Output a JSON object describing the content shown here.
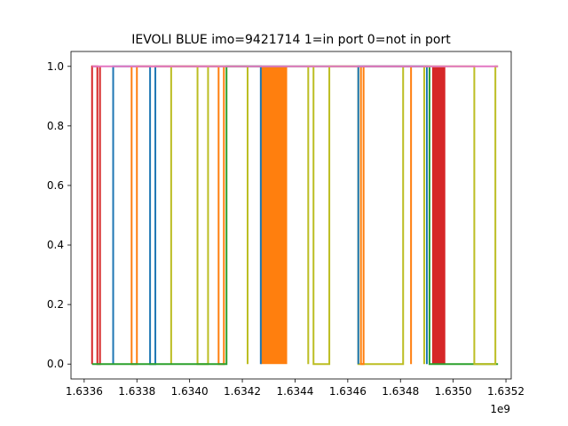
{
  "chart_data": {
    "type": "line",
    "title": "IEVOLI BLUE imo=9421714 1=in port 0=not in port",
    "xlabel": "",
    "ylabel": "",
    "x_offset_label": "1e9",
    "xlim": [
      1.63355,
      1.63522
    ],
    "ylim": [
      -0.05,
      1.05
    ],
    "x_ticks": [
      1.6336,
      1.6338,
      1.634,
      1.6342,
      1.6344,
      1.6346,
      1.6348,
      1.635,
      1.6352
    ],
    "x_tick_labels": [
      "1.6336",
      "1.6338",
      "1.6340",
      "1.6342",
      "1.6344",
      "1.6346",
      "1.6348",
      "1.6350",
      "1.6352"
    ],
    "y_ticks": [
      0.0,
      0.2,
      0.4,
      0.6,
      0.8,
      1.0
    ],
    "y_tick_labels": [
      "0.0",
      "0.2",
      "0.4",
      "0.6",
      "0.8",
      "1.0"
    ],
    "grid": false,
    "legend": "none",
    "series": [
      {
        "color": "#d62728",
        "x": [
          1.63363,
          1.63363,
          1.63365,
          1.63365,
          1.63366,
          1.63366
        ],
        "y": [
          0,
          1,
          1,
          0,
          0,
          1
        ]
      },
      {
        "color": "#1f77b4",
        "x": [
          1.63371,
          1.63371,
          1.63385,
          1.63385,
          1.63387,
          1.63387,
          1.63427,
          1.63427
        ],
        "y": [
          0,
          1,
          1,
          0,
          0,
          1,
          1,
          0
        ]
      },
      {
        "color": "#ff7f0e",
        "x": [
          1.63378,
          1.63378,
          1.6338,
          1.6338,
          1.63411,
          1.63411,
          1.63413,
          1.63413
        ],
        "y": [
          1,
          0,
          0,
          1,
          1,
          0,
          0,
          1
        ]
      },
      {
        "color": "#bcbd22",
        "x": [
          1.63393,
          1.63393,
          1.63403,
          1.63403,
          1.63407,
          1.63407,
          1.63422,
          1.63422
        ],
        "y": [
          0,
          1,
          1,
          0,
          0,
          1,
          1,
          0
        ]
      },
      {
        "color": "#2ca02c",
        "x": [
          1.63363,
          1.63414,
          1.63414,
          1.63491,
          1.63491,
          1.63517
        ],
        "y": [
          0,
          0,
          1,
          1,
          0,
          0
        ]
      },
      {
        "color": "#bcbd22",
        "x": [
          1.63445,
          1.63445,
          1.63447,
          1.63447,
          1.63453,
          1.63453,
          1.63464,
          1.63464,
          1.63481,
          1.63481
        ],
        "y": [
          0,
          1,
          1,
          0,
          0,
          1,
          1,
          0,
          0,
          1
        ]
      },
      {
        "color": "#ff7f0e",
        "x": [
          1.63465,
          1.63465,
          1.63466,
          1.63466,
          1.63484,
          1.63484
        ],
        "y": [
          1,
          0,
          0,
          1,
          1,
          0
        ]
      },
      {
        "color": "#1f77b4",
        "x": [
          1.63464,
          1.63464,
          1.6349,
          1.6349
        ],
        "y": [
          0,
          1,
          1,
          0
        ]
      },
      {
        "color": "#bcbd22",
        "x": [
          1.63489,
          1.63489,
          1.63508,
          1.63508,
          1.63516,
          1.63516,
          1.63517
        ],
        "y": [
          0,
          1,
          1,
          0,
          0,
          1,
          1
        ]
      },
      {
        "color": "#e377c2",
        "x": [
          1.63363,
          1.63517
        ],
        "y": [
          1,
          1
        ]
      }
    ],
    "filled_bands": [
      {
        "color": "#ff7f0e",
        "x_range": [
          1.63427,
          1.63437
        ]
      },
      {
        "color": "#d62728",
        "x_range": [
          1.63492,
          1.63497
        ]
      }
    ]
  }
}
